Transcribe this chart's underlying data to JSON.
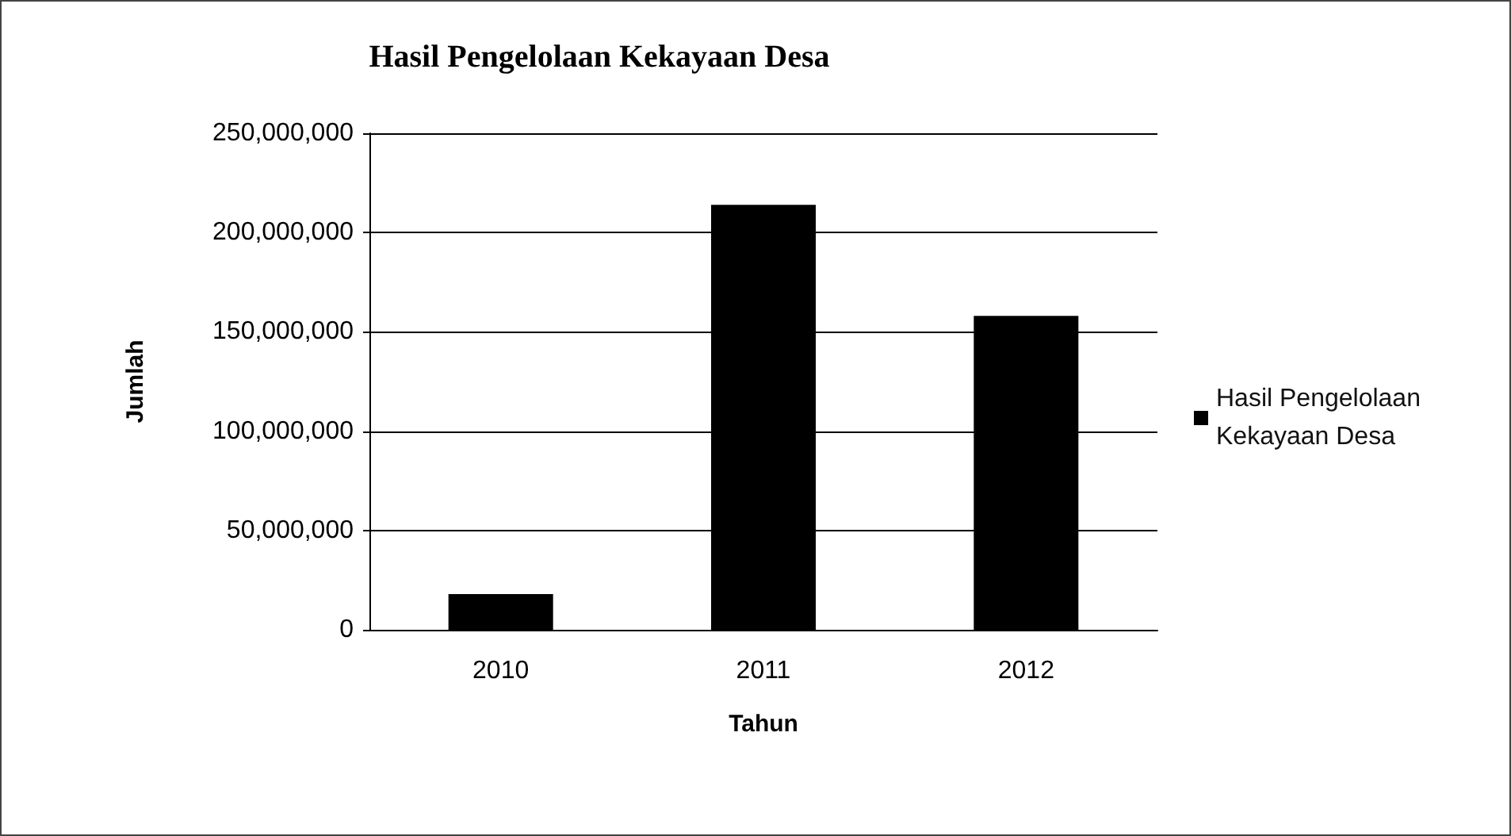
{
  "chart_data": {
    "type": "bar",
    "title": "Hasil Pengelolaan Kekayaan Desa",
    "xlabel": "Tahun",
    "ylabel": "Jumlah",
    "categories": [
      "2010",
      "2011",
      "2012"
    ],
    "series": [
      {
        "name": "Hasil Pengelolaan Kekayaan Desa",
        "color": "#000000",
        "values": [
          18000000,
          214000000,
          158000000
        ]
      }
    ],
    "ylim": [
      0,
      250000000
    ],
    "yticks": [
      0,
      {
        "value": 50000000,
        "label": "50,000,000"
      },
      {
        "value": 100000000,
        "label": "100,000,000"
      },
      {
        "value": 150000000,
        "label": "150,000,000"
      },
      {
        "value": 200000000,
        "label": "200,000,000"
      },
      {
        "value": 250000000,
        "label": "250,000,000"
      }
    ],
    "grid": "y",
    "legend": "right"
  }
}
